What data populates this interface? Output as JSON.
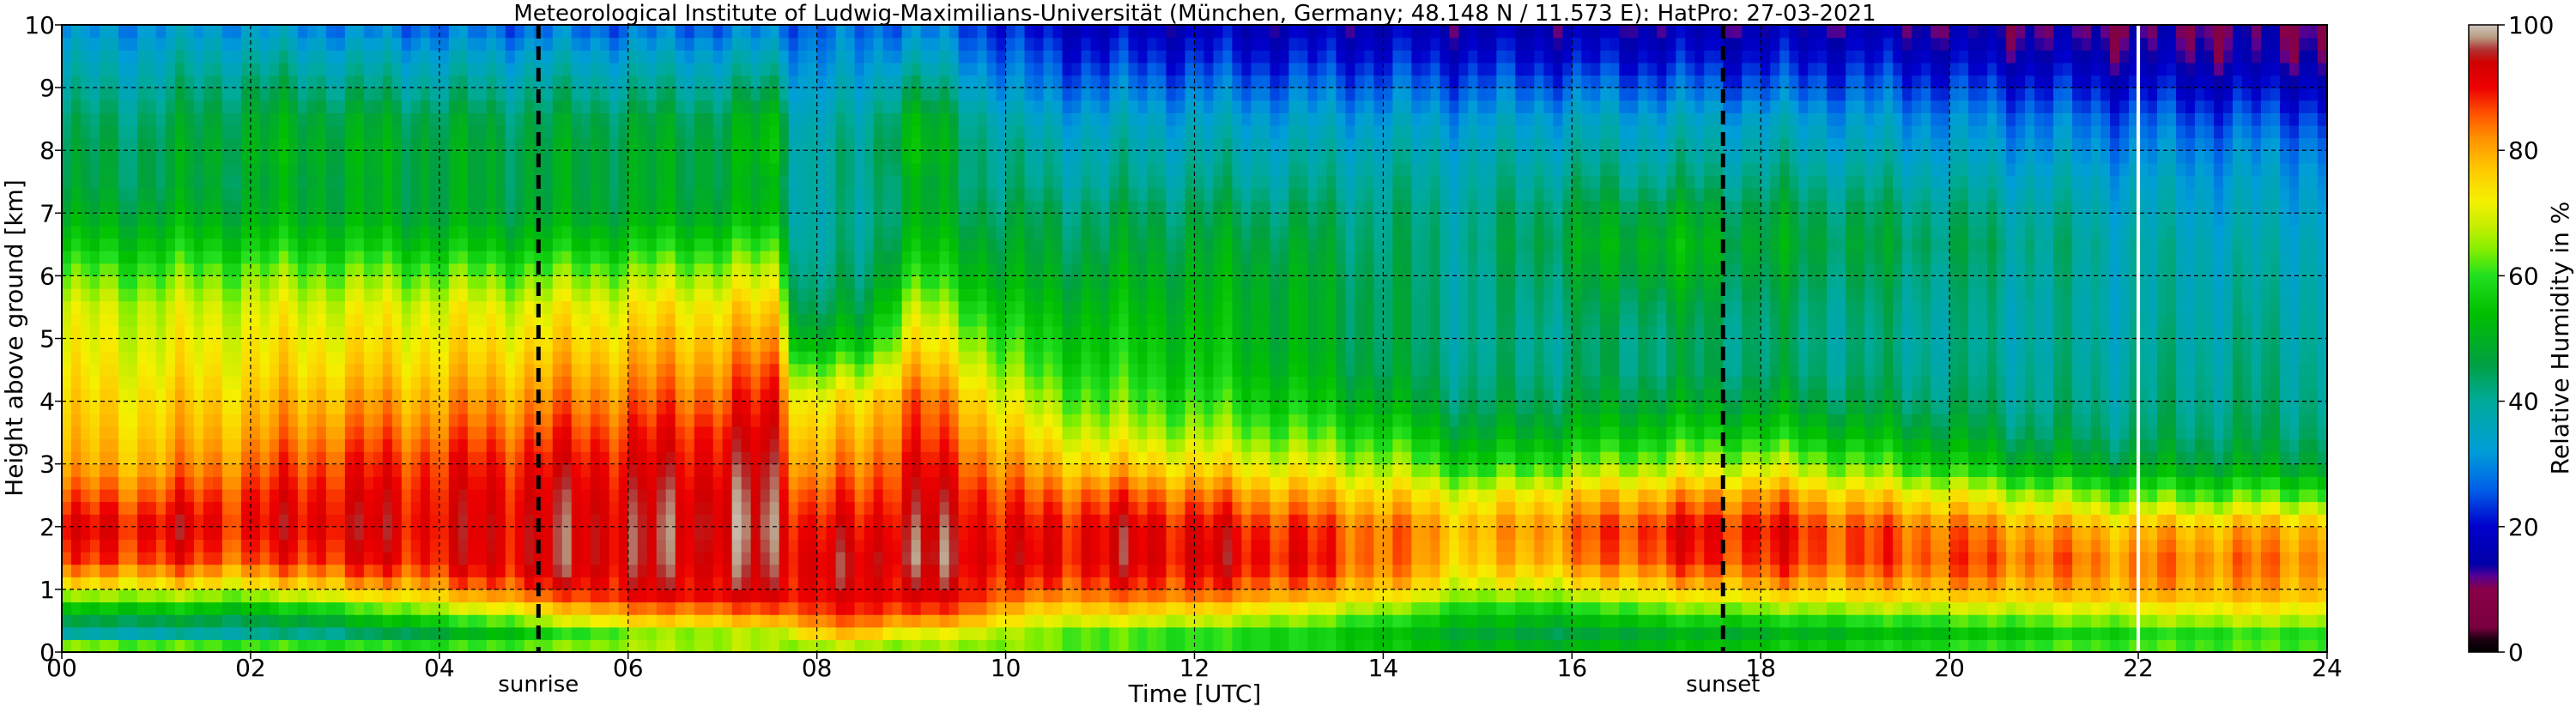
{
  "chart_data": {
    "type": "heatmap",
    "title": "Meteorological Institute of Ludwig-Maximilians-Universität (München, Germany; 48.148 N / 11.573 E):    HatPro: 27-03-2021",
    "xlabel": "Time [UTC]",
    "ylabel": "Height above ground [km]",
    "colorbar_label": "Relative Humidity in %",
    "xlim": [
      0,
      24
    ],
    "ylim": [
      0,
      10
    ],
    "clim": [
      0,
      100
    ],
    "x_ticks": [
      0,
      2,
      4,
      6,
      8,
      10,
      12,
      14,
      16,
      18,
      20,
      22,
      24
    ],
    "x_tick_labels": [
      "00",
      "02",
      "04",
      "06",
      "08",
      "10",
      "12",
      "14",
      "16",
      "18",
      "20",
      "22",
      "24"
    ],
    "y_ticks": [
      0,
      1,
      2,
      3,
      4,
      5,
      6,
      7,
      8,
      9,
      10
    ],
    "y_tick_labels": [
      "0",
      "1",
      "2",
      "3",
      "4",
      "5",
      "6",
      "7",
      "8",
      "9",
      "10"
    ],
    "colorbar_ticks": [
      0,
      20,
      40,
      60,
      80,
      100
    ],
    "colorbar_tick_labels": [
      "0",
      "20",
      "40",
      "60",
      "80",
      "100"
    ],
    "grid": true,
    "markers": [
      {
        "label": "sunrise",
        "x": 5.05
      },
      {
        "label": "sunset",
        "x": 17.6
      }
    ],
    "highlight_line": {
      "x": 22.0,
      "color": "#ffffff"
    },
    "colormap": [
      [
        0,
        "#000000"
      ],
      [
        2,
        "#1a0010"
      ],
      [
        4,
        "#7a0040"
      ],
      [
        10,
        "#880048"
      ],
      [
        12,
        "#5a0090"
      ],
      [
        14,
        "#0000a8"
      ],
      [
        20,
        "#0000cc"
      ],
      [
        26,
        "#0060e8"
      ],
      [
        32,
        "#009ed8"
      ],
      [
        40,
        "#00aa9a"
      ],
      [
        46,
        "#00a040"
      ],
      [
        54,
        "#00c000"
      ],
      [
        60,
        "#20e020"
      ],
      [
        64,
        "#80ee00"
      ],
      [
        68,
        "#c8ee00"
      ],
      [
        72,
        "#f5f000"
      ],
      [
        77,
        "#ffc800"
      ],
      [
        82,
        "#ff9000"
      ],
      [
        86,
        "#ff5000"
      ],
      [
        90,
        "#ee0000"
      ],
      [
        94,
        "#d00000"
      ],
      [
        96,
        "#b03030"
      ],
      [
        98,
        "#b89a80"
      ],
      [
        100,
        "#d0c8c0"
      ]
    ],
    "rh_profile_heights_km": [
      0.05,
      0.3,
      0.6,
      0.9,
      1.2,
      1.5,
      2.0,
      2.5,
      3.0,
      3.5,
      4.0,
      4.5,
      5.0,
      5.5,
      6.0,
      6.5,
      7.0,
      7.5,
      8.0,
      8.5,
      9.0,
      9.5,
      9.9
    ],
    "rh_profiles": [
      {
        "t": 0.0,
        "rh": [
          70,
          38,
          48,
          64,
          78,
          86,
          90,
          84,
          78,
          76,
          74,
          72,
          70,
          68,
          62,
          54,
          48,
          45,
          44,
          42,
          38,
          34,
          30
        ]
      },
      {
        "t": 1.0,
        "rh": [
          68,
          38,
          50,
          66,
          80,
          88,
          92,
          86,
          80,
          77,
          75,
          72,
          70,
          68,
          62,
          55,
          49,
          46,
          46,
          44,
          40,
          36,
          32
        ]
      },
      {
        "t": 2.0,
        "rh": [
          66,
          40,
          48,
          64,
          78,
          86,
          90,
          88,
          84,
          80,
          77,
          74,
          72,
          69,
          64,
          56,
          50,
          48,
          50,
          48,
          44,
          38,
          33
        ]
      },
      {
        "t": 3.0,
        "rh": [
          64,
          42,
          54,
          72,
          84,
          90,
          93,
          91,
          88,
          84,
          80,
          76,
          73,
          70,
          64,
          56,
          50,
          49,
          50,
          48,
          42,
          36,
          30
        ]
      },
      {
        "t": 4.0,
        "rh": [
          62,
          48,
          62,
          76,
          86,
          90,
          91,
          90,
          88,
          84,
          80,
          76,
          73,
          70,
          63,
          54,
          48,
          48,
          48,
          46,
          40,
          34,
          28
        ]
      },
      {
        "t": 5.0,
        "rh": [
          64,
          56,
          70,
          84,
          92,
          93,
          93,
          92,
          90,
          86,
          82,
          78,
          74,
          70,
          63,
          54,
          48,
          47,
          47,
          45,
          40,
          34,
          28
        ]
      },
      {
        "t": 6.0,
        "rh": [
          66,
          64,
          80,
          90,
          93,
          94,
          94,
          93,
          91,
          88,
          84,
          80,
          76,
          72,
          65,
          56,
          49,
          48,
          48,
          46,
          40,
          34,
          28
        ]
      },
      {
        "t": 7.0,
        "rh": [
          66,
          66,
          82,
          91,
          93,
          94,
          95,
          94,
          92,
          90,
          86,
          82,
          78,
          74,
          67,
          58,
          50,
          48,
          48,
          46,
          40,
          34,
          28
        ]
      },
      {
        "t": 7.6,
        "rh": [
          66,
          66,
          84,
          92,
          94,
          95,
          96,
          95,
          94,
          92,
          90,
          86,
          80,
          75,
          68,
          60,
          52,
          50,
          54,
          52,
          44,
          36,
          30
        ]
      },
      {
        "t": 7.8,
        "rh": [
          64,
          74,
          86,
          90,
          92,
          92,
          90,
          86,
          80,
          76,
          72,
          62,
          50,
          44,
          41,
          39,
          38,
          38,
          38,
          36,
          33,
          30,
          27
        ]
      },
      {
        "t": 8.5,
        "rh": [
          64,
          78,
          88,
          91,
          92,
          92,
          90,
          86,
          82,
          78,
          74,
          64,
          52,
          46,
          42,
          40,
          39,
          40,
          40,
          38,
          34,
          30,
          27
        ]
      },
      {
        "t": 9.0,
        "rh": [
          64,
          70,
          86,
          92,
          94,
          96,
          95,
          93,
          91,
          88,
          86,
          80,
          74,
          68,
          60,
          54,
          50,
          50,
          54,
          52,
          44,
          36,
          30
        ]
      },
      {
        "t": 9.6,
        "rh": [
          64,
          70,
          84,
          90,
          92,
          93,
          92,
          90,
          86,
          82,
          78,
          72,
          66,
          60,
          54,
          50,
          46,
          44,
          44,
          42,
          36,
          30,
          26
        ]
      },
      {
        "t": 10.3,
        "rh": [
          64,
          64,
          72,
          82,
          88,
          90,
          89,
          84,
          78,
          72,
          66,
          60,
          56,
          52,
          48,
          46,
          44,
          40,
          38,
          34,
          28,
          24,
          20
        ]
      },
      {
        "t": 11.0,
        "rh": [
          62,
          62,
          74,
          84,
          90,
          92,
          92,
          86,
          76,
          68,
          62,
          58,
          55,
          52,
          49,
          46,
          44,
          40,
          38,
          34,
          28,
          22,
          18
        ]
      },
      {
        "t": 12.0,
        "rh": [
          60,
          60,
          72,
          84,
          90,
          92,
          91,
          84,
          74,
          66,
          60,
          56,
          54,
          52,
          50,
          48,
          45,
          41,
          38,
          34,
          28,
          22,
          18
        ]
      },
      {
        "t": 13.0,
        "rh": [
          58,
          58,
          68,
          80,
          88,
          90,
          88,
          80,
          70,
          62,
          56,
          52,
          50,
          50,
          49,
          47,
          44,
          40,
          37,
          33,
          27,
          21,
          17
        ]
      },
      {
        "t": 14.0,
        "rh": [
          56,
          54,
          62,
          74,
          82,
          84,
          84,
          76,
          66,
          58,
          50,
          46,
          45,
          45,
          44,
          43,
          42,
          40,
          37,
          33,
          27,
          21,
          17
        ]
      },
      {
        "t": 15.0,
        "rh": [
          52,
          48,
          54,
          64,
          72,
          76,
          78,
          70,
          56,
          48,
          43,
          41,
          40,
          40,
          40,
          41,
          40,
          38,
          36,
          32,
          26,
          20,
          16
        ]
      },
      {
        "t": 16.0,
        "rh": [
          52,
          46,
          54,
          66,
          76,
          82,
          84,
          76,
          62,
          52,
          46,
          43,
          42,
          44,
          46,
          48,
          46,
          42,
          38,
          34,
          27,
          20,
          16
        ]
      },
      {
        "t": 17.0,
        "rh": [
          54,
          50,
          60,
          72,
          82,
          88,
          90,
          80,
          66,
          56,
          48,
          44,
          44,
          46,
          50,
          52,
          48,
          42,
          38,
          34,
          27,
          20,
          16
        ]
      },
      {
        "t": 18.0,
        "rh": [
          56,
          50,
          60,
          74,
          84,
          88,
          90,
          82,
          68,
          56,
          48,
          44,
          43,
          44,
          46,
          48,
          46,
          42,
          38,
          34,
          26,
          20,
          16
        ]
      },
      {
        "t": 19.0,
        "rh": [
          58,
          52,
          62,
          74,
          82,
          86,
          86,
          76,
          62,
          52,
          45,
          42,
          41,
          42,
          44,
          46,
          44,
          40,
          36,
          32,
          26,
          20,
          16
        ]
      },
      {
        "t": 20.0,
        "rh": [
          60,
          54,
          64,
          76,
          84,
          86,
          84,
          72,
          56,
          48,
          43,
          41,
          40,
          41,
          42,
          44,
          42,
          38,
          34,
          30,
          24,
          18,
          14
        ]
      },
      {
        "t": 21.0,
        "rh": [
          62,
          56,
          66,
          76,
          82,
          84,
          80,
          66,
          50,
          44,
          41,
          40,
          39,
          39,
          40,
          41,
          39,
          36,
          32,
          28,
          22,
          16,
          13
        ]
      },
      {
        "t": 22.0,
        "rh": [
          62,
          58,
          68,
          78,
          82,
          82,
          78,
          62,
          48,
          43,
          41,
          40,
          39,
          38,
          38,
          38,
          36,
          34,
          30,
          26,
          20,
          15,
          12
        ]
      },
      {
        "t": 23.0,
        "rh": [
          62,
          60,
          70,
          78,
          82,
          83,
          79,
          62,
          48,
          44,
          42,
          41,
          40,
          39,
          38,
          37,
          35,
          33,
          30,
          25,
          19,
          14,
          12
        ]
      },
      {
        "t": 24.0,
        "rh": [
          62,
          60,
          70,
          78,
          82,
          83,
          80,
          62,
          48,
          44,
          42,
          41,
          40,
          39,
          38,
          37,
          35,
          33,
          30,
          25,
          19,
          14,
          12
        ]
      }
    ]
  }
}
